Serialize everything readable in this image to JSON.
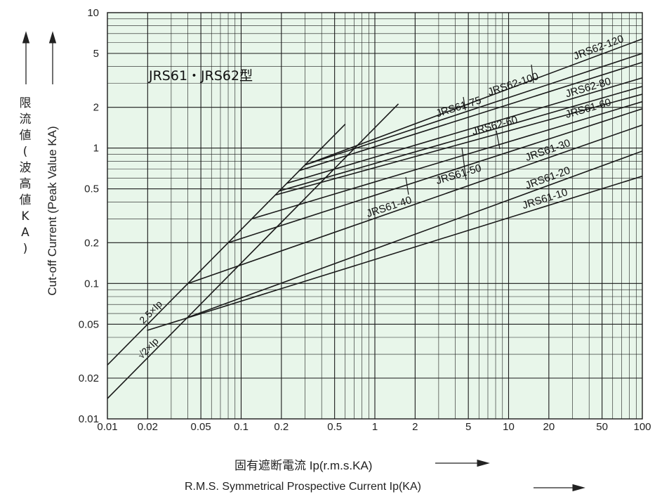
{
  "chart_data": {
    "type": "line",
    "xscale": "log",
    "yscale": "log",
    "xlim": [
      0.01,
      100
    ],
    "ylim": [
      0.01,
      10
    ],
    "grid": true,
    "background_color": "#e8f6ea",
    "line_color": "#1a1a1a",
    "x_ticks": [
      "0.01",
      "0.02",
      "0.05",
      "0.1",
      "0.2",
      "0.5",
      "1",
      "2",
      "5",
      "10",
      "20",
      "50",
      "100"
    ],
    "y_ticks": [
      "0.01",
      "0.02",
      "0.05",
      "0.1",
      "0.2",
      "0.5",
      "1",
      "2",
      "5",
      "10"
    ],
    "title": "JRS61・JRS62型",
    "xlabel_jp": "固有遮断電流 Ip(r.m.s.KA)",
    "xlabel_en": "R.M.S. Symmetrical Prospective Current Ip(KA)",
    "ylabel_jp": [
      "限",
      "流",
      "値",
      "(",
      "波",
      "高",
      "値",
      "K",
      "A",
      ")"
    ],
    "ylabel_en": "Cut-off Current (Peak Value KA)",
    "series": [
      {
        "name": "2.5×Ip",
        "x": [
          0.01,
          0.6
        ],
        "y": [
          0.025,
          1.5
        ]
      },
      {
        "name": "√2×Ip",
        "x": [
          0.01,
          1.5
        ],
        "y": [
          0.01414,
          2.12
        ]
      },
      {
        "name": "JRS61-10",
        "x": [
          0.0198,
          100
        ],
        "y": [
          0.045,
          0.62
        ]
      },
      {
        "name": "JRS61-20",
        "x": [
          0.0396,
          100
        ],
        "y": [
          0.056,
          0.95
        ]
      },
      {
        "name": "JRS61-30",
        "x": [
          0.04,
          100
        ],
        "y": [
          0.1,
          1.48
        ]
      },
      {
        "name": "JRS61-40",
        "x": [
          0.08,
          100
        ],
        "y": [
          0.2,
          1.95
        ]
      },
      {
        "name": "JRS61-50",
        "x": [
          0.12,
          100
        ],
        "y": [
          0.3,
          2.2
        ]
      },
      {
        "name": "JRS62-60",
        "x": [
          0.18,
          100
        ],
        "y": [
          0.45,
          2.5
        ]
      },
      {
        "name": "JRS61-60",
        "x": [
          0.19,
          100
        ],
        "y": [
          0.48,
          2.85
        ]
      },
      {
        "name": "JRS62-80",
        "x": [
          0.22,
          100
        ],
        "y": [
          0.55,
          3.3
        ]
      },
      {
        "name": "JRS61-75",
        "x": [
          0.27,
          100
        ],
        "y": [
          0.68,
          4.3
        ]
      },
      {
        "name": "JRS62-100",
        "x": [
          0.3,
          100
        ],
        "y": [
          0.75,
          5.0
        ]
      },
      {
        "name": "JRS62-120",
        "x": [
          0.3,
          100
        ],
        "y": [
          0.75,
          6.4
        ]
      }
    ]
  }
}
